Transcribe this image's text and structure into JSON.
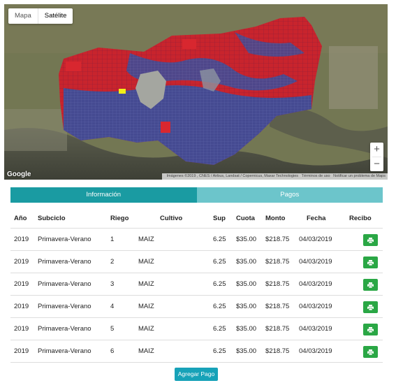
{
  "map": {
    "type_control": {
      "map_label": "Mapa",
      "satellite_label": "Satélite",
      "active": "satellite"
    },
    "zoom": {
      "in_label": "+",
      "out_label": "−"
    },
    "logo": "Google",
    "attribution": {
      "data": "Imágenes ©2019 , CNES / Airbus, Landsat / Copernicus, Maxar Technologies",
      "terms": "Términos de uso",
      "report": "Notificar un problema de Maps"
    },
    "colors": {
      "parcel_red": "#c8242d",
      "parcel_blue": "#3a4d9a",
      "highlight": "#f2ee18"
    }
  },
  "tabs": [
    {
      "label": "Información",
      "active": true,
      "color": "#1a9ba2"
    },
    {
      "label": "Pagos",
      "active": false,
      "color": "#6cc5cb"
    }
  ],
  "table": {
    "headers": {
      "anio": "Año",
      "subciclo": "Subciclo",
      "riego": "Riego",
      "cultivo": "Cultivo",
      "sup": "Sup",
      "cuota": "Cuota",
      "monto": "Monto",
      "fecha": "Fecha",
      "recibo": "Recibo"
    },
    "rows": [
      {
        "anio": "2019",
        "subciclo": "Primavera-Verano",
        "riego": "1",
        "cultivo": "MAIZ",
        "sup": "6.25",
        "cuota": "$35.00",
        "monto": "$218.75",
        "fecha": "04/03/2019",
        "recibo_icon": "print-icon"
      },
      {
        "anio": "2019",
        "subciclo": "Primavera-Verano",
        "riego": "2",
        "cultivo": "MAIZ",
        "sup": "6.25",
        "cuota": "$35.00",
        "monto": "$218.75",
        "fecha": "04/03/2019",
        "recibo_icon": "print-icon"
      },
      {
        "anio": "2019",
        "subciclo": "Primavera-Verano",
        "riego": "3",
        "cultivo": "MAIZ",
        "sup": "6.25",
        "cuota": "$35.00",
        "monto": "$218.75",
        "fecha": "04/03/2019",
        "recibo_icon": "print-icon"
      },
      {
        "anio": "2019",
        "subciclo": "Primavera-Verano",
        "riego": "4",
        "cultivo": "MAIZ",
        "sup": "6.25",
        "cuota": "$35.00",
        "monto": "$218.75",
        "fecha": "04/03/2019",
        "recibo_icon": "print-icon"
      },
      {
        "anio": "2019",
        "subciclo": "Primavera-Verano",
        "riego": "5",
        "cultivo": "MAIZ",
        "sup": "6.25",
        "cuota": "$35.00",
        "monto": "$218.75",
        "fecha": "04/03/2019",
        "recibo_icon": "print-icon"
      },
      {
        "anio": "2019",
        "subciclo": "Primavera-Verano",
        "riego": "6",
        "cultivo": "MAIZ",
        "sup": "6.25",
        "cuota": "$35.00",
        "monto": "$218.75",
        "fecha": "04/03/2019",
        "recibo_icon": "print-icon"
      }
    ]
  },
  "add_payment_label": "Agregar Pago",
  "colors": {
    "print_button": "#2aa745",
    "add_button": "#17a2b8"
  }
}
